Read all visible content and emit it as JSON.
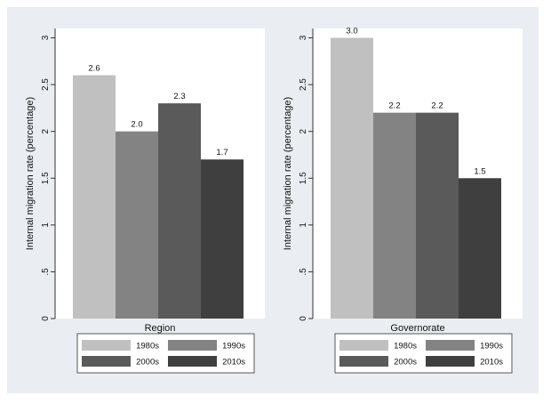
{
  "colors": {
    "outer_bg": "#eaeef2",
    "plot_bg": "#ffffff",
    "series": [
      "#c0c0c0",
      "#838383",
      "#5a5a5a",
      "#3f3f3f"
    ]
  },
  "chart_data": [
    {
      "type": "bar",
      "xlabel": "Region",
      "ylabel": "Internal migration rate (percentage)",
      "ylim": [
        0,
        3.1
      ],
      "yticks": [
        "0",
        ".5",
        "1",
        "1.5",
        "2",
        "2.5",
        "3"
      ],
      "grid": false,
      "legend_position": "bottom",
      "categories": [
        "Region"
      ],
      "series": [
        {
          "name": "1980s",
          "values": [
            2.6
          ],
          "label": "2.6"
        },
        {
          "name": "1990s",
          "values": [
            2.0
          ],
          "label": "2.0"
        },
        {
          "name": "2000s",
          "values": [
            2.3
          ],
          "label": "2.3"
        },
        {
          "name": "2010s",
          "values": [
            1.7
          ],
          "label": "1.7"
        }
      ]
    },
    {
      "type": "bar",
      "xlabel": "Governorate",
      "ylabel": "Internal migration rate (percentage)",
      "ylim": [
        0,
        3.1
      ],
      "yticks": [
        "0",
        ".5",
        "1",
        "1.5",
        "2",
        "2.5",
        "3"
      ],
      "grid": false,
      "legend_position": "bottom",
      "categories": [
        "Governorate"
      ],
      "series": [
        {
          "name": "1980s",
          "values": [
            3.0
          ],
          "label": "3.0"
        },
        {
          "name": "1990s",
          "values": [
            2.2
          ],
          "label": "2.2"
        },
        {
          "name": "2000s",
          "values": [
            2.2
          ],
          "label": "2.2"
        },
        {
          "name": "2010s",
          "values": [
            1.5
          ],
          "label": "1.5"
        }
      ]
    }
  ]
}
